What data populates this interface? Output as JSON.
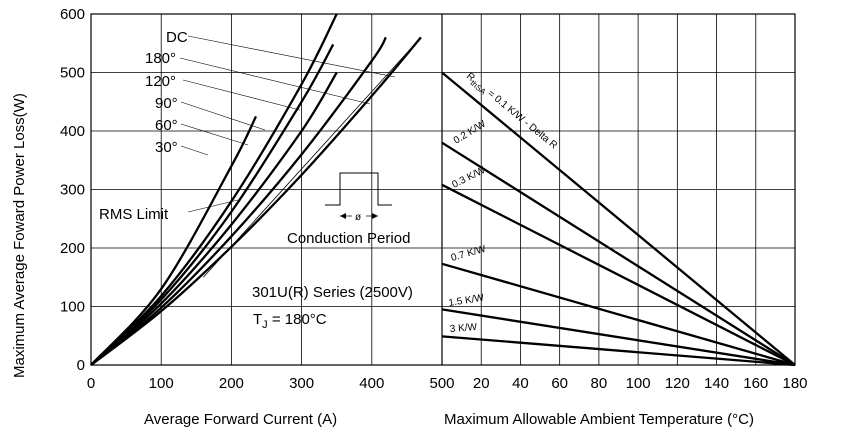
{
  "chart_data": [
    {
      "type": "line",
      "xlabel": "Average Forward Current (A)",
      "ylabel": "Maximum Average Foward Power Loss(W)",
      "xlim": [
        0,
        500
      ],
      "ylim": [
        0,
        600
      ],
      "xticks": [
        "0",
        "100",
        "200",
        "300",
        "400",
        "500"
      ],
      "yticks": [
        "0",
        "100",
        "200",
        "300",
        "400",
        "500",
        "600"
      ],
      "grid": true,
      "series": [
        {
          "name": "DC",
          "x": [
            0,
            100,
            200,
            300,
            400,
            470
          ],
          "y": [
            0,
            92,
            202,
            325,
            460,
            560
          ]
        },
        {
          "name": "180°",
          "x": [
            0,
            100,
            200,
            300,
            400,
            420
          ],
          "y": [
            0,
            98,
            220,
            360,
            520,
            560
          ]
        },
        {
          "name": "120°",
          "x": [
            0,
            100,
            200,
            300,
            350
          ],
          "y": [
            0,
            105,
            240,
            400,
            500
          ]
        },
        {
          "name": "90°",
          "x": [
            0,
            100,
            200,
            300,
            345
          ],
          "y": [
            0,
            112,
            262,
            450,
            548
          ]
        },
        {
          "name": "60°",
          "x": [
            0,
            100,
            200,
            300,
            350
          ],
          "y": [
            0,
            118,
            280,
            480,
            600
          ]
        },
        {
          "name": "30°",
          "x": [
            0,
            100,
            200,
            235
          ],
          "y": [
            0,
            130,
            340,
            425
          ]
        }
      ],
      "rms_limit": {
        "label": "RMS Limit",
        "x": [
          160,
          470
        ],
        "y": [
          150,
          560
        ]
      },
      "inset_label": "Conduction Period",
      "inset_symbol": "ø",
      "annotation": {
        "line1": "301U(R) Series (2500V)",
        "tj_prefix": "T",
        "tj_sub": "J",
        "tj_value": " = 180°C"
      }
    },
    {
      "type": "line",
      "xlabel": "Maximum Allowable Ambient Temperature (°C)",
      "xlim": [
        0,
        180
      ],
      "ylim": [
        0,
        600
      ],
      "xticks": [
        "0",
        "20",
        "40",
        "60",
        "80",
        "100",
        "120",
        "140",
        "160",
        "180"
      ],
      "grid": true,
      "series": [
        {
          "name": "0.1 K/W - Delta R",
          "label_prefix": "R",
          "label_sub": "thSA",
          "label_rest": " = 0.1 K/W - Delta R",
          "x": [
            0,
            180
          ],
          "y": [
            500,
            0
          ]
        },
        {
          "name": "0.2 K/W",
          "x": [
            0,
            180
          ],
          "y": [
            380,
            0
          ]
        },
        {
          "name": "0.3 K/W",
          "x": [
            0,
            180
          ],
          "y": [
            308,
            0
          ]
        },
        {
          "name": "0.7 K/W",
          "x": [
            0,
            180
          ],
          "y": [
            173,
            0
          ]
        },
        {
          "name": "1.5 K/W",
          "x": [
            0,
            180
          ],
          "y": [
            95,
            0
          ]
        },
        {
          "name": "3 K/W",
          "x": [
            0,
            180
          ],
          "y": [
            49,
            0
          ]
        }
      ]
    }
  ]
}
